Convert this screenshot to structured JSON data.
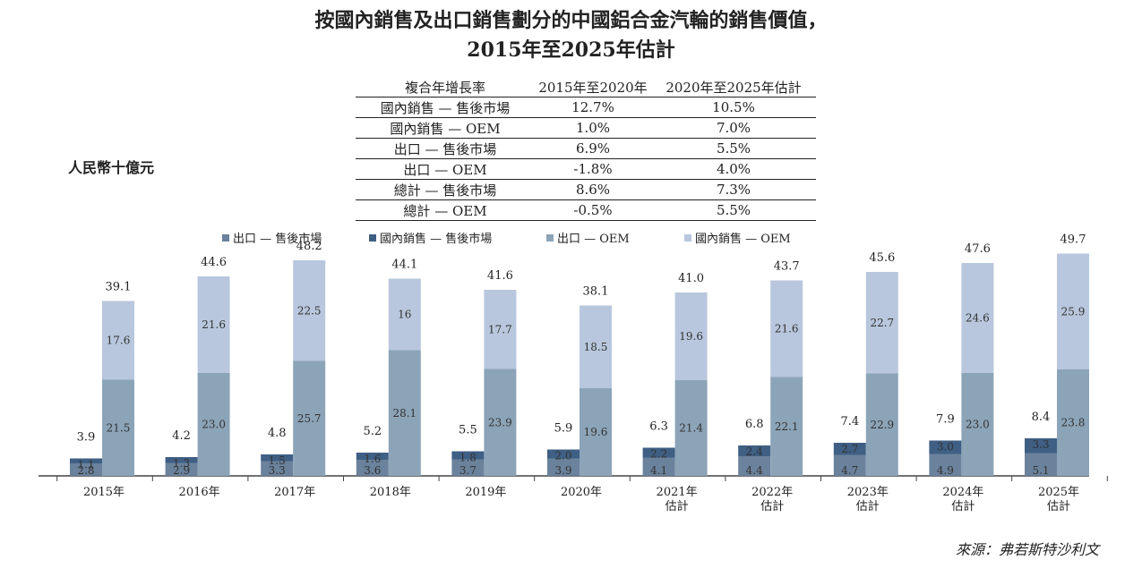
{
  "title_line1": "按國內銷售及出口銷售劃分的中國鋁合金汽輪的銷售價值，",
  "title_line2": "2015年至2025年估計",
  "unit_label": "人民幣十億元",
  "source": "來源：弗若斯特沙利文",
  "cagr_table": {
    "headers": [
      "複合年增長率",
      "2015年至2020年",
      "2020年至2025年估計"
    ],
    "rows": [
      [
        "國內銷售 — 售後市場",
        "12.7%",
        "10.5%"
      ],
      [
        "國內銷售 — OEM",
        "1.0%",
        "7.0%"
      ],
      [
        "出口 — 售後市場",
        "6.9%",
        "5.5%"
      ],
      [
        "出口 — OEM",
        "-1.8%",
        "4.0%"
      ],
      [
        "總計 — 售後市場",
        "8.6%",
        "7.3%"
      ],
      [
        "總計 — OEM",
        "-0.5%",
        "5.5%"
      ]
    ]
  },
  "chart_data": {
    "type": "bar",
    "stacked": true,
    "legend_position": "top",
    "categories": [
      "2015年",
      "2016年",
      "2017年",
      "2018年",
      "2019年",
      "2020年",
      "2021年\n估計",
      "2022年\n估計",
      "2023年\n估計",
      "2024年\n估計",
      "2025年\n估計"
    ],
    "groups": [
      {
        "stack": "aftermarket",
        "totals": [
          "3.9",
          "4.2",
          "4.8",
          "5.2",
          "5.5",
          "5.9",
          "6.3",
          "6.8",
          "7.4",
          "7.9",
          "8.4"
        ],
        "series": [
          {
            "name": "出口 — 售後市場",
            "color": "#6a829c",
            "values": [
              2.8,
              2.9,
              3.3,
              3.6,
              3.7,
              3.9,
              4.1,
              4.4,
              4.7,
              4.9,
              5.1
            ],
            "labels": [
              "2.8",
              "2.9",
              "3.3",
              "3.6",
              "3.7",
              "3.9",
              "4.1",
              "4.4",
              "4.7",
              "4.9",
              "5.1"
            ]
          },
          {
            "name": "國內銷售 — 售後市場",
            "color": "#3f5f84",
            "values": [
              1.1,
              1.3,
              1.5,
              1.6,
              1.8,
              2.0,
              2.2,
              2.4,
              2.7,
              3.0,
              3.3
            ],
            "labels": [
              "1.1",
              "1.3",
              "1.5",
              "1.6",
              "1.8",
              "2.0",
              "2.2",
              "2.4",
              "2.7",
              "3.0",
              "3.3"
            ]
          }
        ]
      },
      {
        "stack": "oem",
        "totals": [
          "39.1",
          "44.6",
          "48.2",
          "44.1",
          "41.6",
          "38.1",
          "41.0",
          "43.7",
          "45.6",
          "47.6",
          "49.7"
        ],
        "series": [
          {
            "name": "出口 — OEM",
            "color": "#8ca4b8",
            "values": [
              21.5,
              23.0,
              25.7,
              28.1,
              23.9,
              19.6,
              21.4,
              22.1,
              22.9,
              23.0,
              23.8
            ],
            "labels": [
              "21.5",
              "23.0",
              "25.7",
              "28.1",
              "23.9",
              "19.6",
              "21.4",
              "22.1",
              "22.9",
              "23.0",
              "23.8"
            ]
          },
          {
            "name": "國內銷售 — OEM",
            "color": "#b8c7dd",
            "values": [
              17.6,
              21.6,
              22.5,
              16,
              17.7,
              18.5,
              19.6,
              21.6,
              22.7,
              24.6,
              25.9
            ],
            "labels": [
              "17.6",
              "21.6",
              "22.5",
              "16",
              "17.7",
              "18.5",
              "19.6",
              "21.6",
              "22.7",
              "24.6",
              "25.9"
            ]
          }
        ]
      }
    ],
    "legend": [
      {
        "name": "出口 — 售後市場",
        "color": "#6a829c"
      },
      {
        "name": "國內銷售 — 售後市場",
        "color": "#3f5f84"
      },
      {
        "name": "出口 — OEM",
        "color": "#8ca4b8"
      },
      {
        "name": "國內銷售 — OEM",
        "color": "#b8c7dd"
      }
    ],
    "ylim": [
      0,
      50
    ],
    "grid": false
  }
}
